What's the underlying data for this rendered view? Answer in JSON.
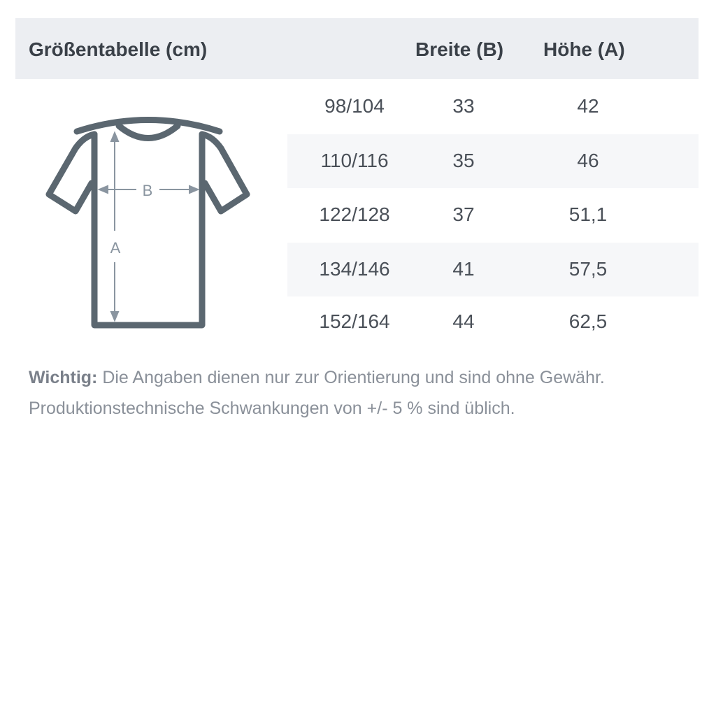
{
  "header": {
    "title": "Größentabelle (cm)",
    "col_width": "Breite (B)",
    "col_height": "Höhe (A)"
  },
  "rows": [
    {
      "size": "98/104",
      "width": "33",
      "height": "42"
    },
    {
      "size": "110/116",
      "width": "35",
      "height": "46"
    },
    {
      "size": "122/128",
      "width": "37",
      "height": "51,1"
    },
    {
      "size": "134/146",
      "width": "41",
      "height": "57,5"
    },
    {
      "size": "152/164",
      "width": "44",
      "height": "62,5"
    }
  ],
  "diagram": {
    "label_b": "B",
    "label_a": "A"
  },
  "note": {
    "bold": "Wichtig:",
    "line1": " Die Angaben dienen nur zur Orientierung und sind ohne Gewähr.",
    "line2": "Produktionstechnische Schwankungen von +/- 5 % sind üblich."
  },
  "colors": {
    "shirt": "#5b6770",
    "arrows": "#8a95a0",
    "header_bg": "#eceef2"
  }
}
